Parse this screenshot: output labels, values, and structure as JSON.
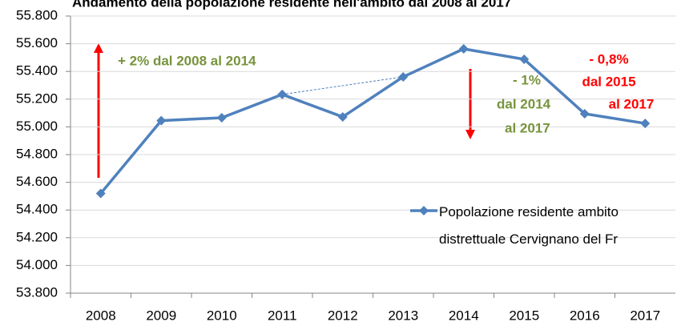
{
  "chart_data": {
    "type": "line",
    "title": "Andamento della popolazione residente nell'ambito dal 2008 al 2017",
    "categories": [
      "2008",
      "2009",
      "2010",
      "2011",
      "2012",
      "2013",
      "2014",
      "2015",
      "2016",
      "2017"
    ],
    "series": [
      {
        "name": "Popolazione residente ambito distrettuale Cervignano del Fr",
        "color": "#4f81bd",
        "values": [
          54520,
          55045,
          55066,
          55234,
          55072,
          55361,
          55563,
          55488,
          55095,
          55025
        ]
      }
    ],
    "ylim": [
      53800,
      55800
    ],
    "yticks": [
      {
        "value": 53800,
        "label": "53.800"
      },
      {
        "value": 54000,
        "label": "54.000"
      },
      {
        "value": 54200,
        "label": "54.200"
      },
      {
        "value": 54400,
        "label": "54.400"
      },
      {
        "value": 54600,
        "label": "54.600"
      },
      {
        "value": 54800,
        "label": "54.800"
      },
      {
        "value": 55000,
        "label": "55.000"
      },
      {
        "value": 55200,
        "label": "55.200"
      },
      {
        "value": 55400,
        "label": "55.400"
      },
      {
        "value": 55600,
        "label": "55.600"
      },
      {
        "value": 55800,
        "label": "55.800"
      }
    ],
    "grid": true,
    "annotations": [
      {
        "lines": [
          "+ 2% dal 2008 al 2014"
        ],
        "color": "#77933c"
      },
      {
        "lines": [
          "- 1%",
          "dal 2014",
          "al 2017"
        ],
        "color": "#77933c"
      },
      {
        "lines": [
          "- 0,8%",
          "dal 2015",
          "al 2017"
        ],
        "color": "#ff0000"
      }
    ]
  }
}
